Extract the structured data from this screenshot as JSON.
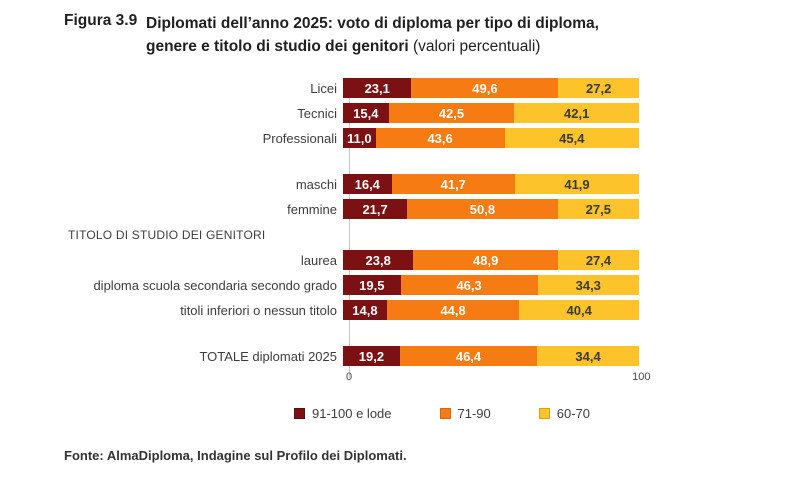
{
  "figure": {
    "label": "Figura 3.9",
    "title_line1": "Diplomati dell’anno 2025: voto di diploma per tipo di diploma,",
    "title_line2": "genere e titolo di studio dei genitori ",
    "title_note": "(valori percentuali)"
  },
  "chart_data": {
    "type": "bar",
    "stacked": true,
    "orientation": "horizontal",
    "title": "Diplomati dell’anno 2025: voto di diploma per tipo di diploma, genere e titolo di studio dei genitori (valori percentuali)",
    "xlabel": "",
    "ylabel": "",
    "x_axis": {
      "min": 0,
      "max": 100,
      "tick_min": "0",
      "tick_max": "100",
      "grid": false
    },
    "legend_position": "bottom",
    "series_meta": [
      {
        "name": "91-100 e lode",
        "color": "#7b1113",
        "border": "#5e0c0e",
        "text_color": "#ffffff"
      },
      {
        "name": "71-90",
        "color": "#f57b12",
        "border": "#d9660a",
        "text_color": "#ffffff"
      },
      {
        "name": "60-70",
        "color": "#fdc32b",
        "border": "#e09e14",
        "text_color": "#3b3b3b"
      }
    ],
    "rows": [
      {
        "type": "bar",
        "label": "Licei",
        "values": [
          23.1,
          49.6,
          27.2
        ],
        "value_labels": [
          "23,1",
          "49,6",
          "27,2"
        ]
      },
      {
        "type": "bar",
        "label": "Tecnici",
        "values": [
          15.4,
          42.5,
          42.1
        ],
        "value_labels": [
          "15,4",
          "42,5",
          "42,1"
        ]
      },
      {
        "type": "bar",
        "label": "Professionali",
        "values": [
          11.0,
          43.6,
          45.4
        ],
        "value_labels": [
          "11,0",
          "43,6",
          "45,4"
        ]
      },
      {
        "type": "gap"
      },
      {
        "type": "bar",
        "label": "maschi",
        "values": [
          16.4,
          41.7,
          41.9
        ],
        "value_labels": [
          "16,4",
          "41,7",
          "41,9"
        ]
      },
      {
        "type": "bar",
        "label": "femmine",
        "values": [
          21.7,
          50.8,
          27.5
        ],
        "value_labels": [
          "21,7",
          "50,8",
          "27,5"
        ]
      },
      {
        "type": "section",
        "label": "TITOLO DI STUDIO DEI GENITORI"
      },
      {
        "type": "bar",
        "label": "laurea",
        "values": [
          23.8,
          48.9,
          27.4
        ],
        "value_labels": [
          "23,8",
          "48,9",
          "27,4"
        ]
      },
      {
        "type": "bar",
        "label": "diploma scuola secondaria secondo grado",
        "values": [
          19.5,
          46.3,
          34.3
        ],
        "value_labels": [
          "19,5",
          "46,3",
          "34,3"
        ]
      },
      {
        "type": "bar",
        "label": "titoli inferiori o nessun titolo",
        "values": [
          14.8,
          44.8,
          40.4
        ],
        "value_labels": [
          "14,8",
          "44,8",
          "40,4"
        ]
      },
      {
        "type": "gap"
      },
      {
        "type": "bar",
        "label": "TOTALE diplomati 2025",
        "values": [
          19.2,
          46.4,
          34.4
        ],
        "value_labels": [
          "19,2",
          "46,4",
          "34,4"
        ]
      }
    ]
  },
  "footer": "Fonte: AlmaDiploma, Indagine sul Profilo dei Diplomati."
}
